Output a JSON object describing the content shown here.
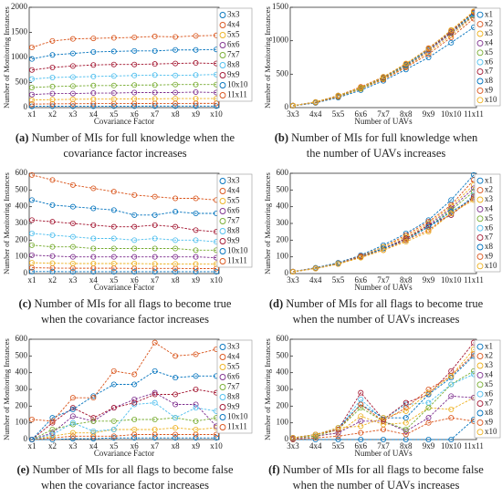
{
  "chart_data": [
    {
      "type": "line",
      "label": "(a)",
      "caption": [
        "Number of MIs for full knowledge when the",
        "covariance factor increases"
      ],
      "x_label": "Covariance Factor",
      "y_label": "Number of Monitoring Instances",
      "categories": [
        "x1",
        "x2",
        "x3",
        "x4",
        "x5",
        "x6",
        "x7",
        "x8",
        "x9",
        "x10"
      ],
      "ylim": [
        0,
        2000
      ],
      "yticks": [
        0,
        500,
        1000,
        1500,
        2000
      ],
      "series": [
        {
          "name": "3x3",
          "color": "#0072BD",
          "values": [
            25,
            27,
            28,
            28,
            29,
            29,
            30,
            30,
            30,
            30
          ]
        },
        {
          "name": "4x4",
          "color": "#D95319",
          "values": [
            70,
            75,
            78,
            80,
            80,
            82,
            82,
            83,
            84,
            84
          ]
        },
        {
          "name": "5x5",
          "color": "#EDB120",
          "values": [
            150,
            160,
            165,
            170,
            170,
            175,
            175,
            180,
            180,
            180
          ]
        },
        {
          "name": "6x6",
          "color": "#7E2F8E",
          "values": [
            260,
            280,
            280,
            290,
            290,
            300,
            300,
            300,
            310,
            300
          ]
        },
        {
          "name": "7x7",
          "color": "#77AC30",
          "values": [
            400,
            420,
            430,
            440,
            440,
            450,
            450,
            460,
            460,
            460
          ]
        },
        {
          "name": "8x8",
          "color": "#4DBEEE",
          "values": [
            570,
            600,
            610,
            620,
            630,
            640,
            650,
            640,
            650,
            660
          ]
        },
        {
          "name": "9x9",
          "color": "#A2142F",
          "values": [
            750,
            800,
            830,
            850,
            860,
            860,
            870,
            880,
            890,
            880
          ]
        },
        {
          "name": "10x10",
          "color": "#0072BD",
          "values": [
            970,
            1050,
            1080,
            1110,
            1120,
            1130,
            1130,
            1150,
            1150,
            1160
          ]
        },
        {
          "name": "11x11",
          "color": "#D95319",
          "values": [
            1200,
            1330,
            1370,
            1380,
            1390,
            1400,
            1420,
            1410,
            1430,
            1440
          ]
        }
      ]
    },
    {
      "type": "line",
      "label": "(b)",
      "caption": [
        "Number of MIs for full knowledge when",
        "the number of UAVs increases"
      ],
      "x_label": "Number of UAVs",
      "y_label": "Number of Monitoring Instances",
      "categories": [
        "3x3",
        "4x4",
        "5x5",
        "6x6",
        "7x7",
        "8x8",
        "9x9",
        "10x10",
        "11x11"
      ],
      "ylim": [
        0,
        1500
      ],
      "yticks": [
        0,
        500,
        1000,
        1500
      ],
      "series": [
        {
          "name": "x1",
          "color": "#0072BD",
          "values": [
            25,
            70,
            150,
            260,
            400,
            570,
            750,
            970,
            1200
          ]
        },
        {
          "name": "x2",
          "color": "#D95319",
          "values": [
            27,
            75,
            160,
            280,
            420,
            600,
            800,
            1050,
            1330
          ]
        },
        {
          "name": "x3",
          "color": "#EDB120",
          "values": [
            28,
            78,
            165,
            280,
            430,
            610,
            830,
            1080,
            1370
          ]
        },
        {
          "name": "x4",
          "color": "#7E2F8E",
          "values": [
            28,
            80,
            170,
            290,
            440,
            620,
            850,
            1110,
            1380
          ]
        },
        {
          "name": "x5",
          "color": "#77AC30",
          "values": [
            29,
            80,
            170,
            290,
            440,
            630,
            860,
            1120,
            1390
          ]
        },
        {
          "name": "x6",
          "color": "#4DBEEE",
          "values": [
            29,
            82,
            175,
            300,
            450,
            640,
            860,
            1130,
            1400
          ]
        },
        {
          "name": "x7",
          "color": "#A2142F",
          "values": [
            30,
            82,
            175,
            300,
            450,
            650,
            870,
            1130,
            1420
          ]
        },
        {
          "name": "x8",
          "color": "#0072BD",
          "values": [
            30,
            83,
            180,
            300,
            460,
            640,
            880,
            1150,
            1410
          ]
        },
        {
          "name": "x9",
          "color": "#D95319",
          "values": [
            30,
            84,
            180,
            310,
            460,
            650,
            890,
            1150,
            1430
          ]
        },
        {
          "name": "x10",
          "color": "#EDB120",
          "values": [
            30,
            84,
            180,
            300,
            460,
            660,
            880,
            1160,
            1440
          ]
        }
      ]
    },
    {
      "type": "line",
      "label": "(c)",
      "caption": [
        "Number of MIs for all flags to become true",
        "when the covariance factor increases"
      ],
      "x_label": "Covariance Factor",
      "y_label": "Number of Monitoring Instances",
      "categories": [
        "x1",
        "x2",
        "x3",
        "x4",
        "x5",
        "x6",
        "x7",
        "x8",
        "x9",
        "x10"
      ],
      "ylim": [
        0,
        600
      ],
      "yticks": [
        0,
        100,
        200,
        300,
        400,
        500,
        600
      ],
      "series": [
        {
          "name": "3x3",
          "color": "#0072BD",
          "values": [
            12,
            12,
            11,
            11,
            11,
            11,
            11,
            11,
            11,
            11
          ]
        },
        {
          "name": "4x4",
          "color": "#D95319",
          "values": [
            35,
            33,
            32,
            32,
            32,
            31,
            31,
            31,
            30,
            30
          ]
        },
        {
          "name": "5x5",
          "color": "#EDB120",
          "values": [
            65,
            62,
            60,
            60,
            60,
            60,
            58,
            58,
            57,
            57
          ]
        },
        {
          "name": "6x6",
          "color": "#7E2F8E",
          "values": [
            110,
            105,
            100,
            100,
            100,
            100,
            100,
            100,
            100,
            95
          ]
        },
        {
          "name": "7x7",
          "color": "#77AC30",
          "values": [
            170,
            160,
            160,
            150,
            150,
            150,
            150,
            150,
            140,
            140
          ]
        },
        {
          "name": "8x8",
          "color": "#4DBEEE",
          "values": [
            240,
            230,
            220,
            210,
            210,
            200,
            210,
            200,
            200,
            190
          ]
        },
        {
          "name": "9x9",
          "color": "#A2142F",
          "values": [
            320,
            310,
            300,
            290,
            280,
            280,
            290,
            280,
            260,
            250
          ]
        },
        {
          "name": "10x10",
          "color": "#0072BD",
          "values": [
            440,
            410,
            400,
            390,
            380,
            350,
            350,
            370,
            360,
            360
          ]
        },
        {
          "name": "11x11",
          "color": "#D95319",
          "values": [
            590,
            560,
            530,
            510,
            490,
            470,
            460,
            450,
            450,
            440
          ]
        }
      ]
    },
    {
      "type": "line",
      "label": "(d)",
      "caption": [
        "Number of MIs for all flags to become true",
        "when the number of UAVs increases"
      ],
      "x_label": "Number of UAVs",
      "y_label": "Number of Monitoring Instances",
      "categories": [
        "3x3",
        "4x4",
        "5x5",
        "6x6",
        "7x7",
        "8x8",
        "9x9",
        "10x10",
        "11x11"
      ],
      "ylim": [
        0,
        600
      ],
      "yticks": [
        0,
        100,
        200,
        300,
        400,
        500,
        600
      ],
      "series": [
        {
          "name": "x1",
          "color": "#0072BD",
          "values": [
            12,
            35,
            65,
            110,
            170,
            240,
            320,
            440,
            590
          ]
        },
        {
          "name": "x2",
          "color": "#D95319",
          "values": [
            12,
            33,
            62,
            105,
            160,
            230,
            310,
            410,
            560
          ]
        },
        {
          "name": "x3",
          "color": "#EDB120",
          "values": [
            11,
            32,
            60,
            100,
            160,
            220,
            300,
            400,
            530
          ]
        },
        {
          "name": "x4",
          "color": "#7E2F8E",
          "values": [
            11,
            32,
            60,
            100,
            150,
            210,
            290,
            390,
            510
          ]
        },
        {
          "name": "x5",
          "color": "#77AC30",
          "values": [
            11,
            32,
            60,
            100,
            150,
            210,
            280,
            380,
            490
          ]
        },
        {
          "name": "x6",
          "color": "#4DBEEE",
          "values": [
            11,
            31,
            60,
            100,
            150,
            200,
            280,
            350,
            470
          ]
        },
        {
          "name": "x7",
          "color": "#A2142F",
          "values": [
            11,
            31,
            58,
            100,
            150,
            210,
            290,
            350,
            460
          ]
        },
        {
          "name": "x8",
          "color": "#0072BD",
          "values": [
            11,
            31,
            58,
            100,
            150,
            200,
            280,
            370,
            450
          ]
        },
        {
          "name": "x9",
          "color": "#D95319",
          "values": [
            11,
            30,
            57,
            100,
            140,
            200,
            260,
            360,
            450
          ]
        },
        {
          "name": "x10",
          "color": "#EDB120",
          "values": [
            11,
            30,
            57,
            95,
            140,
            190,
            250,
            360,
            440
          ]
        }
      ]
    },
    {
      "type": "line",
      "label": "(e)",
      "caption": [
        "Number of MIs for all flags to become false",
        "when the covariance factor increases"
      ],
      "x_label": "Covariance Factor",
      "y_label": "Number of Monitoring Instances",
      "categories": [
        "x1",
        "x2",
        "x3",
        "x4",
        "x5",
        "x6",
        "x7",
        "x8",
        "x9",
        "x10"
      ],
      "ylim": [
        0,
        600
      ],
      "yticks": [
        0,
        100,
        200,
        300,
        400,
        500,
        600
      ],
      "series": [
        {
          "name": "3x3",
          "color": "#0072BD",
          "values": [
            0,
            0,
            5,
            5,
            10,
            10,
            10,
            10,
            10,
            10
          ]
        },
        {
          "name": "4x4",
          "color": "#D95319",
          "values": [
            0,
            10,
            20,
            20,
            20,
            30,
            30,
            30,
            30,
            30
          ]
        },
        {
          "name": "5x5",
          "color": "#EDB120",
          "values": [
            0,
            20,
            40,
            40,
            60,
            60,
            60,
            70,
            60,
            70
          ]
        },
        {
          "name": "6x6",
          "color": "#7E2F8E",
          "values": [
            0,
            40,
            140,
            110,
            190,
            240,
            280,
            210,
            210,
            80
          ]
        },
        {
          "name": "7x7",
          "color": "#77AC30",
          "values": [
            0,
            60,
            90,
            110,
            110,
            120,
            120,
            130,
            110,
            130
          ]
        },
        {
          "name": "8x8",
          "color": "#4DBEEE",
          "values": [
            0,
            30,
            100,
            50,
            60,
            210,
            220,
            130,
            190,
            170
          ]
        },
        {
          "name": "9x9",
          "color": "#A2142F",
          "values": [
            0,
            100,
            190,
            130,
            190,
            220,
            270,
            270,
            300,
            280
          ]
        },
        {
          "name": "10x10",
          "color": "#0072BD",
          "values": [
            0,
            130,
            180,
            260,
            330,
            330,
            410,
            370,
            380,
            380
          ]
        },
        {
          "name": "11x11",
          "color": "#D95319",
          "values": [
            120,
            110,
            250,
            250,
            410,
            390,
            580,
            500,
            510,
            540
          ]
        }
      ]
    },
    {
      "type": "line",
      "label": "(f)",
      "caption": [
        "Number of MIs for all flags to become false",
        "when the number of UAVs increases"
      ],
      "x_label": "Number of UAVs",
      "y_label": "Number of Monitoring Instances",
      "categories": [
        "3x3",
        "4x4",
        "5x5",
        "6x6",
        "7x7",
        "8x8",
        "9x9",
        "10x10",
        "11x11"
      ],
      "ylim": [
        0,
        600
      ],
      "yticks": [
        0,
        100,
        200,
        300,
        400,
        500,
        600
      ],
      "series": [
        {
          "name": "x1",
          "color": "#0072BD",
          "values": [
            0,
            0,
            0,
            0,
            0,
            0,
            0,
            0,
            120
          ]
        },
        {
          "name": "x2",
          "color": "#D95319",
          "values": [
            0,
            10,
            20,
            40,
            60,
            30,
            100,
            130,
            110
          ]
        },
        {
          "name": "x3",
          "color": "#EDB120",
          "values": [
            5,
            20,
            40,
            140,
            90,
            100,
            190,
            180,
            250
          ]
        },
        {
          "name": "x4",
          "color": "#7E2F8E",
          "values": [
            5,
            20,
            40,
            110,
            110,
            50,
            130,
            260,
            250
          ]
        },
        {
          "name": "x5",
          "color": "#77AC30",
          "values": [
            10,
            20,
            60,
            190,
            110,
            60,
            190,
            330,
            410
          ]
        },
        {
          "name": "x6",
          "color": "#4DBEEE",
          "values": [
            10,
            30,
            60,
            240,
            120,
            210,
            220,
            330,
            390
          ]
        },
        {
          "name": "x7",
          "color": "#A2142F",
          "values": [
            10,
            30,
            60,
            280,
            120,
            220,
            270,
            410,
            580
          ]
        },
        {
          "name": "x8",
          "color": "#0072BD",
          "values": [
            10,
            30,
            70,
            210,
            130,
            130,
            270,
            370,
            500
          ]
        },
        {
          "name": "x9",
          "color": "#D95319",
          "values": [
            10,
            30,
            60,
            210,
            110,
            190,
            300,
            380,
            510
          ]
        },
        {
          "name": "x10",
          "color": "#EDB120",
          "values": [
            10,
            30,
            70,
            80,
            130,
            170,
            280,
            380,
            540
          ]
        }
      ]
    }
  ]
}
